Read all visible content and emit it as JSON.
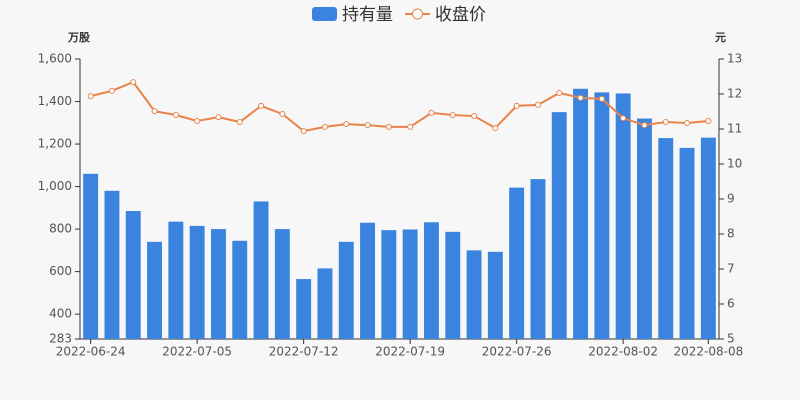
{
  "chart_data": {
    "type": "bar-line",
    "ylabel": "万股",
    "y2label": "元",
    "categories": [
      "2022-06-24",
      null,
      null,
      null,
      null,
      "2022-07-05",
      null,
      null,
      null,
      null,
      "2022-07-12",
      null,
      null,
      null,
      null,
      "2022-07-19",
      null,
      null,
      null,
      null,
      "2022-07-26",
      null,
      null,
      null,
      null,
      "2022-08-02",
      null,
      null,
      null,
      "2022-08-08"
    ],
    "series": [
      {
        "name": "持有量",
        "type": "bar",
        "color": "#3a84e0",
        "values": [
          1060,
          980,
          885,
          740,
          835,
          815,
          800,
          745,
          930,
          800,
          565,
          615,
          740,
          830,
          795,
          798,
          832,
          787,
          700,
          693,
          995,
          1035,
          1350,
          1460,
          1443,
          1438,
          1320,
          1228,
          1182,
          1230
        ]
      },
      {
        "name": "收盘价",
        "type": "line",
        "axis": "y2",
        "color": "#e8844a",
        "values": [
          11.94,
          12.09,
          12.34,
          11.51,
          11.4,
          11.23,
          11.34,
          11.2,
          11.66,
          11.43,
          10.94,
          11.06,
          11.14,
          11.11,
          11.06,
          11.06,
          11.46,
          11.4,
          11.37,
          11.03,
          11.66,
          11.69,
          12.03,
          11.89,
          11.86,
          11.31,
          11.11,
          11.2,
          11.17,
          11.23
        ]
      }
    ],
    "ylim": [
      283,
      1600
    ],
    "yticks": [
      283,
      400,
      600,
      800,
      {
        "value": 1000,
        "label": "1,000"
      },
      {
        "value": 1200,
        "label": "1,200"
      },
      {
        "value": 1400,
        "label": "1,400"
      },
      {
        "value": 1600,
        "label": "1,600"
      }
    ],
    "y2lim": [
      5,
      13
    ],
    "y2ticks": [
      5,
      6,
      7,
      8,
      9,
      10,
      11,
      12,
      13
    ]
  }
}
